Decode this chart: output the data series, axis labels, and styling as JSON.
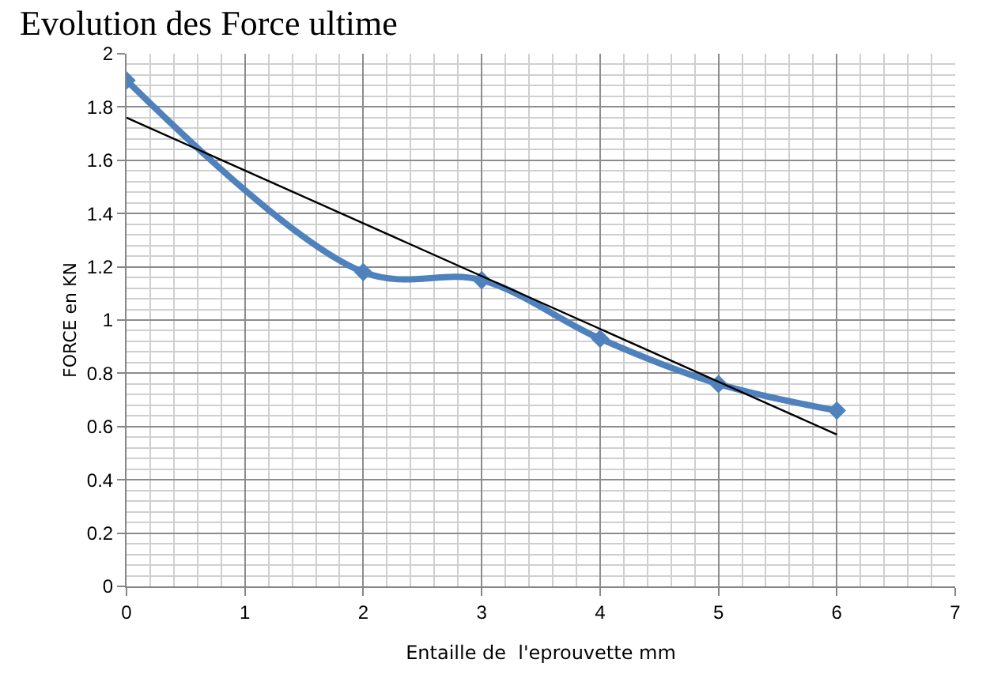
{
  "chart_data": {
    "type": "line",
    "title": "Evolution des Force ultime",
    "xlabel": "Entaille de  l'eprouvette mm",
    "ylabel": "FORCE en KN",
    "x": [
      0,
      2,
      3,
      4,
      5,
      6
    ],
    "series": [
      {
        "color": "#4f81bd",
        "values": [
          1.9,
          1.18,
          1.15,
          0.93,
          0.76,
          0.66
        ],
        "marker": "diamond"
      },
      {
        "type": "line",
        "color": "#000000",
        "x": [
          0,
          6
        ],
        "values": [
          1.76,
          0.57
        ],
        "marker": "none"
      }
    ],
    "xlim": [
      0,
      7
    ],
    "xticks": [
      0,
      1,
      2,
      3,
      4,
      5,
      6,
      7
    ],
    "ylim": [
      0,
      2
    ],
    "yticks": [
      0,
      0.2,
      0.4,
      0.6,
      0.8,
      1,
      1.2,
      1.4,
      1.6,
      1.8,
      2
    ],
    "grid": true
  }
}
